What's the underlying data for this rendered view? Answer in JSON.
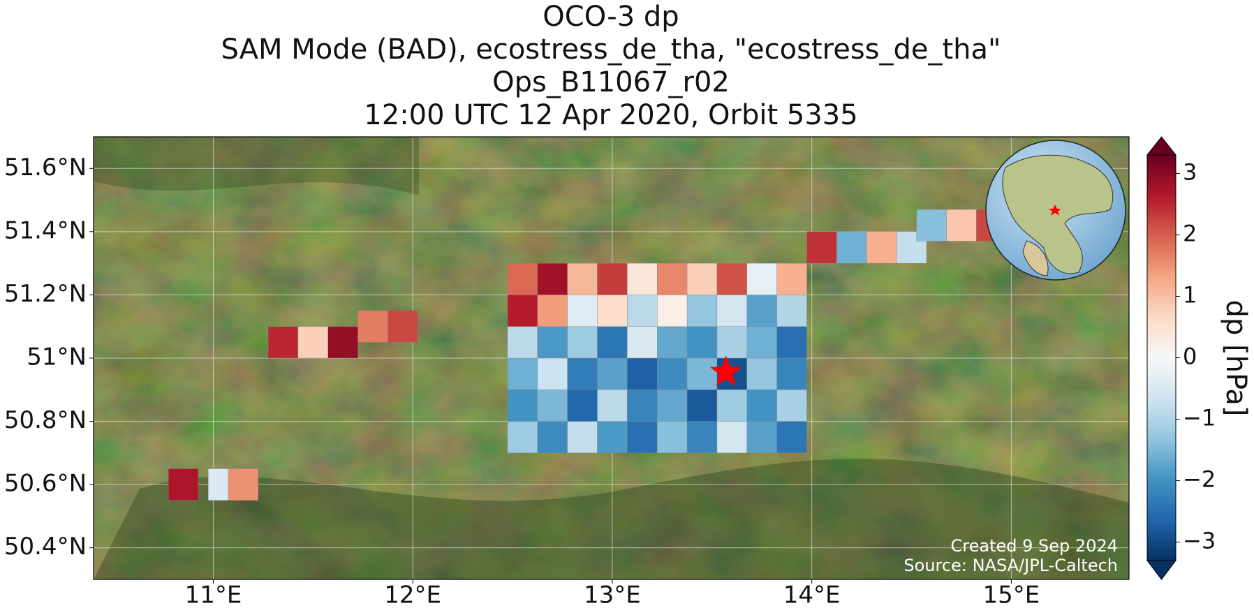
{
  "chart_data": {
    "type": "map",
    "title": [
      "OCO-3 dp",
      "SAM Mode (BAD), ecostress_de_tha, \"ecostress_de_tha\"",
      "Ops_B11067_r02",
      "12:00 UTC 12 Apr 2020, Orbit 5335"
    ],
    "xlim": [
      10.4,
      15.59
    ],
    "ylim": [
      50.3,
      51.7
    ],
    "xticks": [
      {
        "value": 11,
        "label": "11°E"
      },
      {
        "value": 12,
        "label": "12°E"
      },
      {
        "value": 13,
        "label": "13°E"
      },
      {
        "value": 14,
        "label": "14°E"
      },
      {
        "value": 15,
        "label": "15°E"
      }
    ],
    "yticks": [
      {
        "value": 50.4,
        "label": "50.4°N"
      },
      {
        "value": 50.6,
        "label": "50.6°N"
      },
      {
        "value": 50.8,
        "label": "50.8°N"
      },
      {
        "value": 51,
        "label": "51°N"
      },
      {
        "value": 51.2,
        "label": "51.2°N"
      },
      {
        "value": 51.4,
        "label": "51.4°N"
      },
      {
        "value": 51.6,
        "label": "51.6°N"
      }
    ],
    "grid": true,
    "colorbar": {
      "label": "dp [hPa]",
      "clim": [
        -3.3,
        3.3
      ],
      "ticks": [
        {
          "value": -3,
          "label": "−3"
        },
        {
          "value": -2,
          "label": "−2"
        },
        {
          "value": -1,
          "label": "−1"
        },
        0,
        1,
        2,
        3
      ],
      "colormap": [
        "#053061",
        "#2166ac",
        "#4393c3",
        "#92c5de",
        "#d1e5f0",
        "#f7f7f7",
        "#fddbc7",
        "#f4a582",
        "#d6604d",
        "#b2182b",
        "#67001f"
      ]
    },
    "target": {
      "lon": 13.57,
      "lat": 50.955,
      "color": "#ff0000"
    },
    "cells": {
      "lon": [
        12.55,
        12.7,
        12.85,
        13.0,
        13.15,
        13.3,
        13.45,
        13.6,
        13.75,
        13.9,
        12.55,
        12.7,
        12.85,
        13.0,
        13.15,
        13.3,
        13.45,
        13.6,
        13.75,
        13.9,
        12.55,
        12.7,
        12.85,
        13.0,
        13.15,
        13.3,
        13.45,
        13.6,
        13.75,
        13.9,
        12.55,
        12.7,
        12.85,
        13.0,
        13.15,
        13.3,
        13.45,
        13.6,
        13.75,
        13.9,
        12.55,
        12.7,
        12.85,
        13.0,
        13.15,
        13.3,
        13.45,
        13.6,
        13.75,
        13.9,
        12.55,
        12.7,
        12.85,
        13.0,
        13.15,
        13.3,
        13.45,
        13.6,
        13.75,
        13.9,
        14.05,
        14.2,
        14.35,
        14.5,
        14.6,
        14.75,
        14.9,
        11.35,
        11.5,
        11.65,
        11.8,
        11.95,
        10.85,
        11.05,
        11.15
      ],
      "lat": [
        50.75,
        50.75,
        50.75,
        50.75,
        50.75,
        50.75,
        50.75,
        50.75,
        50.75,
        50.75,
        50.85,
        50.85,
        50.85,
        50.85,
        50.85,
        50.85,
        50.85,
        50.85,
        50.85,
        50.85,
        50.95,
        50.95,
        50.95,
        50.95,
        50.95,
        50.95,
        50.95,
        50.95,
        50.95,
        50.95,
        51.05,
        51.05,
        51.05,
        51.05,
        51.05,
        51.05,
        51.05,
        51.05,
        51.05,
        51.05,
        51.15,
        51.15,
        51.15,
        51.15,
        51.15,
        51.15,
        51.15,
        51.15,
        51.15,
        51.15,
        51.25,
        51.25,
        51.25,
        51.25,
        51.25,
        51.25,
        51.25,
        51.25,
        51.25,
        51.25,
        51.35,
        51.35,
        51.35,
        51.35,
        51.42,
        51.42,
        51.42,
        51.05,
        51.05,
        51.05,
        51.1,
        51.1,
        50.6,
        50.6,
        50.6
      ],
      "dp": [
        -1.2,
        -2.1,
        -0.8,
        -1.9,
        -2.5,
        -1.4,
        -2.2,
        -0.6,
        -1.8,
        -2.4,
        -2.0,
        -1.5,
        -2.6,
        -0.9,
        -2.2,
        -1.7,
        -2.8,
        -1.2,
        -2.0,
        -1.1,
        -1.6,
        -0.7,
        -2.3,
        -1.8,
        -2.7,
        -2.1,
        -1.5,
        -2.9,
        -1.3,
        -2.2,
        -0.9,
        -1.9,
        -1.2,
        -2.4,
        -0.5,
        -1.7,
        -2.0,
        -1.1,
        -1.6,
        -2.5,
        2.6,
        1.4,
        -0.4,
        0.6,
        -0.9,
        0.2,
        -1.3,
        -0.6,
        -1.8,
        -1.0,
        1.9,
        2.8,
        1.1,
        2.3,
        0.4,
        1.6,
        0.8,
        2.1,
        -0.3,
        1.2,
        2.4,
        -1.6,
        1.2,
        -0.8,
        -1.4,
        0.9,
        2.2,
        2.5,
        0.8,
        2.9,
        1.7,
        2.2,
        2.7,
        -0.5,
        1.5
      ]
    },
    "credits": [
      "Created 9 Sep 2024",
      "Source: NASA/JPL-Caltech"
    ]
  }
}
